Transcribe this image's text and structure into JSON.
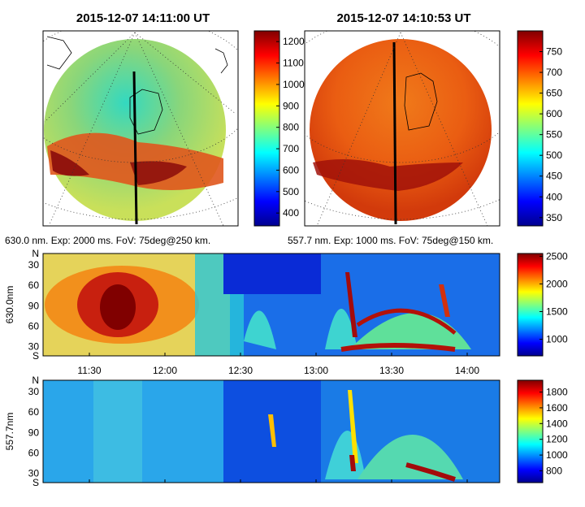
{
  "images": [
    {
      "title": "2015-12-07 14:11:00 UT",
      "caption": "630.0 nm. Exp: 2000 ms. FoV: 75deg@250 km."
    },
    {
      "title": "2015-12-07 14:10:53 UT",
      "caption": "557.7 nm. Exp: 1000 ms. FoV: 75deg@150 km."
    }
  ],
  "chart_data": [
    {
      "type": "heatmap",
      "description_of_panel": "all-sky image 630.0 nm",
      "colorbar": {
        "ticks": [
          400,
          500,
          600,
          700,
          800,
          900,
          1000,
          1100,
          1200
        ],
        "range": [
          340,
          1250
        ]
      }
    },
    {
      "type": "heatmap",
      "description_of_panel": "all-sky image 557.7 nm",
      "colorbar": {
        "ticks": [
          350,
          400,
          450,
          500,
          550,
          600,
          650,
          700,
          750
        ],
        "range": [
          330,
          800
        ]
      }
    },
    {
      "type": "heatmap",
      "ylabel": "630.0nm",
      "yticks": [
        "N",
        "30",
        "60",
        "90",
        "60",
        "30",
        "S"
      ],
      "xticks": [
        "11:30",
        "12:00",
        "12:30",
        "13:00",
        "13:30",
        "14:00"
      ],
      "colorbar": {
        "ticks": [
          1000,
          1500,
          2000,
          2500
        ],
        "range": [
          700,
          2550
        ]
      }
    },
    {
      "type": "heatmap",
      "ylabel": "557.7nm",
      "yticks": [
        "N",
        "30",
        "60",
        "90",
        "60",
        "30",
        "S"
      ],
      "colorbar": {
        "ticks": [
          800,
          1000,
          1200,
          1400,
          1600,
          1800
        ],
        "range": [
          650,
          1950
        ]
      }
    }
  ],
  "colormap": [
    "#00008f",
    "#0000ff",
    "#0080ff",
    "#00ffff",
    "#80ff80",
    "#ffff00",
    "#ff8000",
    "#ff0000",
    "#800000"
  ]
}
